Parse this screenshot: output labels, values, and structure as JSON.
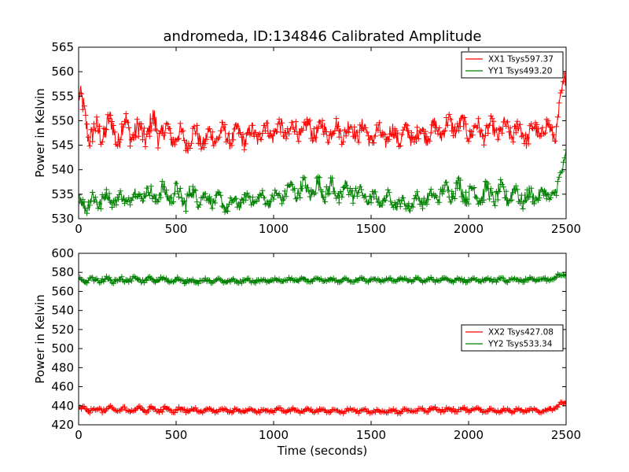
{
  "figure": {
    "title": "andromeda, ID:134846 Calibrated Amplitude",
    "xlabel": "Time (seconds)"
  },
  "colors": {
    "red": "#ff0000",
    "green": "#008000",
    "axis": "#000000"
  },
  "chart_data": [
    {
      "type": "line",
      "marker": "plus",
      "ylabel": "Power in Kelvin",
      "xlim": [
        0,
        2500
      ],
      "ylim": [
        530,
        565
      ],
      "xticks": [
        0,
        500,
        1000,
        1500,
        2000,
        2500
      ],
      "yticks": [
        530,
        535,
        540,
        545,
        550,
        555,
        560,
        565
      ],
      "legend_position": "top-right",
      "series": [
        {
          "name": "XX1 Tsys597.37",
          "color": "#ff0000",
          "x": [
            0,
            50,
            100,
            150,
            200,
            250,
            300,
            350,
            400,
            450,
            500,
            550,
            600,
            650,
            700,
            750,
            800,
            850,
            900,
            950,
            1000,
            1050,
            1100,
            1150,
            1200,
            1250,
            1300,
            1350,
            1400,
            1450,
            1500,
            1550,
            1600,
            1650,
            1700,
            1750,
            1800,
            1850,
            1900,
            1950,
            2000,
            2050,
            2100,
            2150,
            2200,
            2250,
            2300,
            2350,
            2400,
            2450,
            2500
          ],
          "y": [
            555,
            548,
            547,
            549,
            547,
            549,
            547,
            548,
            549,
            547,
            547,
            546,
            547,
            546,
            547,
            547,
            547,
            547,
            547,
            548,
            548,
            548,
            548,
            548,
            548,
            548,
            548,
            548,
            548,
            548,
            547,
            547,
            547,
            547,
            547,
            547,
            548,
            548,
            549,
            549,
            548,
            548,
            548,
            548,
            548,
            548,
            547,
            548,
            548,
            548,
            560
          ],
          "spread": [
            4,
            4,
            4,
            4,
            4,
            4,
            4,
            4,
            5,
            4,
            3,
            3,
            3,
            3,
            3,
            3,
            3,
            3,
            3,
            3,
            3,
            3,
            3,
            3,
            3,
            3,
            3,
            3,
            3,
            3,
            3,
            3,
            3,
            3,
            3,
            3,
            3,
            3,
            3,
            3,
            3,
            3,
            3,
            3,
            3,
            3,
            3,
            3,
            3,
            3,
            3
          ]
        },
        {
          "name": "YY1 Tsys493.20",
          "color": "#008000",
          "x": [
            0,
            50,
            100,
            150,
            200,
            250,
            300,
            350,
            400,
            450,
            500,
            550,
            600,
            650,
            700,
            750,
            800,
            850,
            900,
            950,
            1000,
            1050,
            1100,
            1150,
            1200,
            1250,
            1300,
            1350,
            1400,
            1450,
            1500,
            1550,
            1600,
            1650,
            1700,
            1750,
            1800,
            1850,
            1900,
            1950,
            2000,
            2050,
            2100,
            2150,
            2200,
            2250,
            2300,
            2350,
            2400,
            2450,
            2500
          ],
          "y": [
            534,
            533,
            534,
            534,
            534,
            534,
            535,
            535,
            535,
            535,
            535,
            534,
            535,
            534,
            534,
            533,
            533,
            534,
            534,
            534,
            534,
            535,
            536,
            536,
            536,
            536,
            536,
            535,
            536,
            535,
            534,
            534,
            534,
            533,
            533,
            534,
            534,
            535,
            536,
            536,
            535,
            535,
            535,
            535,
            535,
            535,
            534,
            535,
            535,
            535,
            544
          ],
          "spread": [
            2,
            3,
            3,
            2,
            2,
            2,
            2,
            2,
            3,
            3,
            3,
            3,
            3,
            2,
            2,
            2,
            2,
            2,
            2,
            2,
            2,
            2,
            3,
            3,
            3,
            3,
            3,
            3,
            3,
            2,
            2,
            2,
            2,
            2,
            2,
            2,
            2,
            2,
            3,
            3,
            3,
            3,
            3,
            3,
            3,
            3,
            3,
            2,
            2,
            2,
            2
          ]
        }
      ]
    },
    {
      "type": "line",
      "marker": "plus",
      "ylabel": "Power in Kelvin",
      "xlabel": "Time (seconds)",
      "xlim": [
        0,
        2500
      ],
      "ylim": [
        420,
        600
      ],
      "xticks": [
        0,
        500,
        1000,
        1500,
        2000,
        2500
      ],
      "yticks": [
        420,
        440,
        460,
        480,
        500,
        520,
        540,
        560,
        580,
        600
      ],
      "legend_position": "center-right",
      "series": [
        {
          "name": "XX2 Tsys427.08",
          "color": "#ff0000",
          "x": [
            0,
            100,
            200,
            300,
            400,
            500,
            600,
            700,
            800,
            900,
            1000,
            1100,
            1200,
            1300,
            1400,
            1500,
            1600,
            1700,
            1800,
            1900,
            2000,
            2100,
            2200,
            2300,
            2400,
            2500
          ],
          "y": [
            436,
            436,
            436,
            436,
            436,
            436,
            435,
            435,
            435,
            435,
            435,
            435,
            435,
            435,
            435,
            434,
            434,
            435,
            436,
            436,
            436,
            435,
            435,
            435,
            435,
            444
          ],
          "spread": [
            4,
            4,
            4,
            4,
            4,
            4,
            3,
            3,
            3,
            3,
            3,
            3,
            3,
            3,
            3,
            3,
            3,
            3,
            3,
            3,
            3,
            3,
            3,
            3,
            3,
            3
          ]
        },
        {
          "name": "YY2 Tsys533.34",
          "color": "#008000",
          "x": [
            0,
            100,
            200,
            300,
            400,
            500,
            600,
            700,
            800,
            900,
            1000,
            1100,
            1200,
            1300,
            1400,
            1500,
            1600,
            1700,
            1800,
            1900,
            2000,
            2100,
            2200,
            2300,
            2400,
            2500
          ],
          "y": [
            571,
            572,
            572,
            572,
            572,
            572,
            571,
            571,
            571,
            571,
            571,
            572,
            572,
            572,
            572,
            572,
            572,
            572,
            572,
            572,
            572,
            572,
            572,
            572,
            572,
            578
          ],
          "spread": [
            4,
            4,
            4,
            4,
            4,
            4,
            3,
            3,
            3,
            3,
            3,
            3,
            3,
            3,
            3,
            3,
            3,
            3,
            3,
            3,
            3,
            3,
            3,
            3,
            3,
            3
          ]
        }
      ]
    }
  ]
}
